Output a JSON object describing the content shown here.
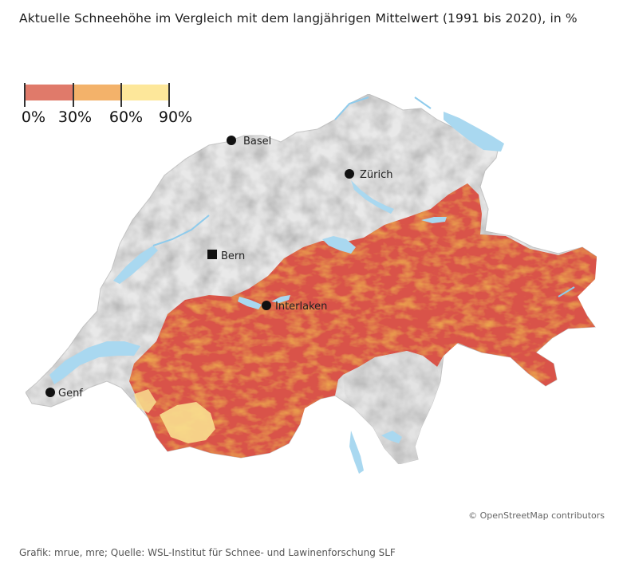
{
  "title": "Aktuelle Schneehöhe im Vergleich mit dem langjährigen Mittelwert (1991 bis 2020), in %",
  "legend": {
    "labels": [
      "0%",
      "30%",
      "60%",
      "90%"
    ],
    "classes": [
      {
        "range": "0–30%",
        "color": "#e07a6a"
      },
      {
        "range": "30–60%",
        "color": "#f3b26a"
      },
      {
        "range": "60–90%",
        "color": "#fde79a"
      }
    ]
  },
  "colors": {
    "terrain_base": "#e9e9e9",
    "terrain_shade": "#cfcfcf",
    "lake": "#a9d8f0",
    "river": "#8ecbec",
    "band_red": "#d9534a",
    "band_orange": "#eba24f",
    "band_yellow": "#f8df8f"
  },
  "cities": [
    {
      "name": "Basel",
      "marker": "circle"
    },
    {
      "name": "Zürich",
      "marker": "circle"
    },
    {
      "name": "Bern",
      "marker": "square"
    },
    {
      "name": "Interlaken",
      "marker": "circle"
    },
    {
      "name": "Genf",
      "marker": "circle"
    }
  ],
  "attribution": "© OpenStreetMap contributors",
  "source": "Grafik: mrue, mre; Quelle: WSL-Institut für Schnee- und Lawinenforschung SLF"
}
